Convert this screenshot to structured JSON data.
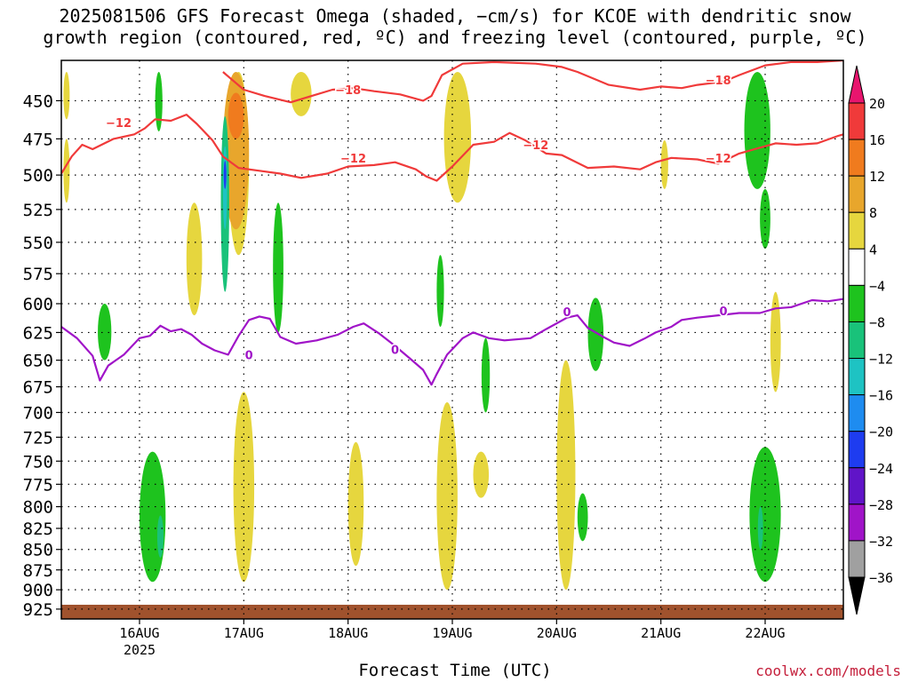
{
  "chart_data": {
    "type": "heatmap",
    "title": "2025081506 GFS Forecast Omega (shaded, −cm/s) for KCOE with dendritic snow",
    "subtitle": "growth region (contoured, red, ºC) and freezing level (contoured, purple, ºC)",
    "xlabel": "Forecast Time (UTC)",
    "ylabel": "",
    "x_ticks": [
      "16AUG",
      "17AUG",
      "18AUG",
      "19AUG",
      "20AUG",
      "21AUG",
      "22AUG"
    ],
    "x_year": "2025",
    "xlim_days": [
      15.25,
      22.75
    ],
    "y_ticks": [
      450,
      475,
      500,
      525,
      550,
      575,
      600,
      625,
      650,
      675,
      700,
      725,
      750,
      775,
      800,
      825,
      850,
      875,
      900,
      925
    ],
    "ylim": [
      425,
      938
    ],
    "y_scale": "log-pressure",
    "grid": true,
    "colorbar": {
      "labels": [
        "20",
        "16",
        "12",
        "8",
        "4",
        "−4",
        "−8",
        "−12",
        "−16",
        "−20",
        "−24",
        "−28",
        "−32",
        "−36"
      ],
      "colors": [
        "#e8156e",
        "#f03a3a",
        "#f07b1e",
        "#e8a62c",
        "#e6d63e",
        "#ffffff",
        "#1ec31e",
        "#19c27a",
        "#1ec3c3",
        "#1e8cf0",
        "#1e3cf0",
        "#6014c8",
        "#a014c8",
        "#a0a0a0",
        "#000000"
      ]
    },
    "contour_labels": {
      "dgz_minus_18": "−18",
      "dgz_minus_12": "−12",
      "freezing_level": "0"
    },
    "series": [
      {
        "label": "−18",
        "color": "#f03a3a",
        "points": [
          [
            16.8,
            432
          ],
          [
            17.0,
            443
          ],
          [
            17.2,
            447
          ],
          [
            17.45,
            451
          ],
          [
            17.65,
            447
          ],
          [
            17.85,
            443
          ],
          [
            18.05,
            442
          ],
          [
            18.25,
            444
          ],
          [
            18.5,
            446
          ],
          [
            18.72,
            450
          ],
          [
            18.8,
            447
          ],
          [
            18.9,
            434
          ],
          [
            19.1,
            427
          ],
          [
            19.4,
            426
          ],
          [
            19.8,
            427
          ],
          [
            20.05,
            429
          ],
          [
            20.2,
            432
          ],
          [
            20.5,
            440
          ],
          [
            20.8,
            443
          ],
          [
            21.0,
            441
          ],
          [
            21.2,
            442
          ],
          [
            21.35,
            440
          ],
          [
            21.6,
            438
          ],
          [
            21.75,
            434
          ],
          [
            22.0,
            428
          ],
          [
            22.25,
            426
          ],
          [
            22.5,
            426
          ],
          [
            22.75,
            425
          ]
        ]
      },
      {
        "label": "−12",
        "color": "#f03a3a",
        "points": [
          [
            15.25,
            499
          ],
          [
            15.35,
            487
          ],
          [
            15.45,
            479
          ],
          [
            15.55,
            482
          ],
          [
            15.75,
            475
          ],
          [
            15.95,
            472
          ],
          [
            16.05,
            468
          ],
          [
            16.15,
            462
          ],
          [
            16.3,
            463
          ],
          [
            16.45,
            459
          ],
          [
            16.55,
            465
          ],
          [
            16.7,
            476
          ],
          [
            16.8,
            487
          ],
          [
            16.95,
            495
          ],
          [
            17.15,
            497
          ],
          [
            17.35,
            499
          ],
          [
            17.55,
            502
          ],
          [
            17.8,
            499
          ],
          [
            18.0,
            494
          ],
          [
            18.25,
            493
          ],
          [
            18.45,
            491
          ],
          [
            18.65,
            496
          ],
          [
            18.75,
            501
          ],
          [
            18.85,
            504
          ],
          [
            19.0,
            494
          ],
          [
            19.2,
            479
          ],
          [
            19.4,
            477
          ],
          [
            19.55,
            471
          ],
          [
            19.7,
            476
          ],
          [
            19.9,
            485
          ],
          [
            20.05,
            486
          ],
          [
            20.3,
            495
          ],
          [
            20.55,
            494
          ],
          [
            20.8,
            496
          ],
          [
            20.95,
            491
          ],
          [
            21.1,
            488
          ],
          [
            21.35,
            489
          ],
          [
            21.55,
            492
          ],
          [
            21.75,
            485
          ],
          [
            21.95,
            481
          ],
          [
            22.1,
            478
          ],
          [
            22.3,
            479
          ],
          [
            22.5,
            478
          ],
          [
            22.7,
            473
          ],
          [
            22.75,
            472
          ]
        ]
      },
      {
        "label": "0",
        "color": "#a014c8",
        "points": [
          [
            15.25,
            620
          ],
          [
            15.4,
            630
          ],
          [
            15.55,
            646
          ],
          [
            15.62,
            669
          ],
          [
            15.7,
            655
          ],
          [
            15.85,
            645
          ],
          [
            16.0,
            630
          ],
          [
            16.1,
            628
          ],
          [
            16.2,
            619
          ],
          [
            16.3,
            624
          ],
          [
            16.4,
            622
          ],
          [
            16.5,
            627
          ],
          [
            16.6,
            635
          ],
          [
            16.72,
            641
          ],
          [
            16.85,
            645
          ],
          [
            16.95,
            628
          ],
          [
            17.05,
            614
          ],
          [
            17.15,
            611
          ],
          [
            17.25,
            613
          ],
          [
            17.35,
            629
          ],
          [
            17.5,
            635
          ],
          [
            17.7,
            632
          ],
          [
            17.9,
            627
          ],
          [
            18.05,
            620
          ],
          [
            18.15,
            617
          ],
          [
            18.3,
            626
          ],
          [
            18.45,
            637
          ],
          [
            18.6,
            649
          ],
          [
            18.72,
            659
          ],
          [
            18.8,
            673
          ],
          [
            18.85,
            663
          ],
          [
            18.95,
            645
          ],
          [
            19.1,
            630
          ],
          [
            19.2,
            625
          ],
          [
            19.35,
            630
          ],
          [
            19.5,
            632
          ],
          [
            19.75,
            630
          ],
          [
            19.9,
            622
          ],
          [
            20.1,
            612
          ],
          [
            20.2,
            610
          ],
          [
            20.3,
            621
          ],
          [
            20.45,
            629
          ],
          [
            20.55,
            634
          ],
          [
            20.7,
            637
          ],
          [
            20.85,
            630
          ],
          [
            20.95,
            625
          ],
          [
            21.1,
            620
          ],
          [
            21.2,
            614
          ],
          [
            21.35,
            612
          ],
          [
            21.55,
            610
          ],
          [
            21.75,
            608
          ],
          [
            21.95,
            608
          ],
          [
            22.1,
            604
          ],
          [
            22.25,
            603
          ],
          [
            22.45,
            597
          ],
          [
            22.6,
            598
          ],
          [
            22.75,
            596
          ]
        ]
      }
    ],
    "shaded_regions": [
      {
        "category": "4 to 8",
        "color": "#e6d63e",
        "x": [
          15.27,
          15.33
        ],
        "y": [
          432,
          462
        ]
      },
      {
        "category": "4 to 8",
        "color": "#e6d63e",
        "x": [
          15.27,
          15.33
        ],
        "y": [
          475,
          520
        ]
      },
      {
        "category": "4 to 8",
        "color": "#e6d63e",
        "x": [
          16.45,
          16.6
        ],
        "y": [
          520,
          610
        ]
      },
      {
        "category": "4 to 8",
        "color": "#e6d63e",
        "x": [
          16.85,
          17.05
        ],
        "y": [
          432,
          560
        ]
      },
      {
        "category": "4 to 8",
        "color": "#e6d63e",
        "x": [
          17.45,
          17.65
        ],
        "y": [
          432,
          460
        ]
      },
      {
        "category": "4 to 8",
        "color": "#e6d63e",
        "x": [
          18.0,
          18.15
        ],
        "y": [
          730,
          870
        ]
      },
      {
        "category": "4 to 8",
        "color": "#e6d63e",
        "x": [
          18.92,
          19.18
        ],
        "y": [
          432,
          520
        ]
      },
      {
        "category": "4 to 8",
        "color": "#e6d63e",
        "x": [
          18.85,
          19.05
        ],
        "y": [
          690,
          900
        ]
      },
      {
        "category": "4 to 8",
        "color": "#e6d63e",
        "x": [
          19.2,
          19.35
        ],
        "y": [
          740,
          790
        ]
      },
      {
        "category": "4 to 8",
        "color": "#e6d63e",
        "x": [
          20.0,
          20.18
        ],
        "y": [
          650,
          900
        ]
      },
      {
        "category": "4 to 8",
        "color": "#e6d63e",
        "x": [
          21.0,
          21.07
        ],
        "y": [
          476,
          510
        ]
      },
      {
        "category": "4 to 8",
        "color": "#e6d63e",
        "x": [
          22.05,
          22.15
        ],
        "y": [
          590,
          680
        ]
      },
      {
        "category": "4 to 8",
        "color": "#e6d63e",
        "x": [
          16.9,
          17.1
        ],
        "y": [
          680,
          890
        ]
      },
      {
        "category": "8 to 12",
        "color": "#e8a62c",
        "x": [
          16.8,
          17.05
        ],
        "y": [
          432,
          540
        ]
      },
      {
        "category": "12 to 16",
        "color": "#f07b1e",
        "x": [
          16.85,
          17.0
        ],
        "y": [
          445,
          475
        ]
      },
      {
        "category": "-4 to -8",
        "color": "#1ec31e",
        "x": [
          15.6,
          15.73
        ],
        "y": [
          600,
          650
        ]
      },
      {
        "category": "-4 to -8",
        "color": "#1ec31e",
        "x": [
          16.0,
          16.25
        ],
        "y": [
          740,
          890
        ]
      },
      {
        "category": "-4 to -8",
        "color": "#1ec31e",
        "x": [
          16.15,
          16.22
        ],
        "y": [
          432,
          470
        ]
      },
      {
        "category": "-4 to -8",
        "color": "#1ec31e",
        "x": [
          17.28,
          17.38
        ],
        "y": [
          520,
          625
        ]
      },
      {
        "category": "-4 to -8",
        "color": "#1ec31e",
        "x": [
          18.85,
          18.92
        ],
        "y": [
          560,
          620
        ]
      },
      {
        "category": "-4 to -8",
        "color": "#1ec31e",
        "x": [
          19.28,
          19.36
        ],
        "y": [
          630,
          700
        ]
      },
      {
        "category": "-4 to -8",
        "color": "#1ec31e",
        "x": [
          20.2,
          20.3
        ],
        "y": [
          785,
          840
        ]
      },
      {
        "category": "-4 to -8",
        "color": "#1ec31e",
        "x": [
          20.3,
          20.45
        ],
        "y": [
          595,
          660
        ]
      },
      {
        "category": "-4 to -8",
        "color": "#1ec31e",
        "x": [
          21.8,
          22.05
        ],
        "y": [
          432,
          510
        ]
      },
      {
        "category": "-4 to -8",
        "color": "#1ec31e",
        "x": [
          21.95,
          22.05
        ],
        "y": [
          510,
          555
        ]
      },
      {
        "category": "-4 to -8",
        "color": "#1ec31e",
        "x": [
          21.85,
          22.15
        ],
        "y": [
          735,
          890
        ]
      },
      {
        "category": "-8 to -12",
        "color": "#19c27a",
        "x": [
          16.78,
          16.86
        ],
        "y": [
          460,
          590
        ]
      },
      {
        "category": "-8 to -12",
        "color": "#19c27a",
        "x": [
          16.17,
          16.23
        ],
        "y": [
          810,
          860
        ]
      },
      {
        "category": "-8 to -12",
        "color": "#19c27a",
        "x": [
          21.93,
          21.98
        ],
        "y": [
          800,
          850
        ]
      },
      {
        "category": "-12 to -16",
        "color": "#1ec3c3",
        "x": [
          16.8,
          16.84
        ],
        "y": [
          480,
          540
        ]
      },
      {
        "category": "-20 to -24",
        "color": "#1e3cf0",
        "x": [
          16.81,
          16.83
        ],
        "y": [
          490,
          510
        ]
      }
    ]
  }
}
